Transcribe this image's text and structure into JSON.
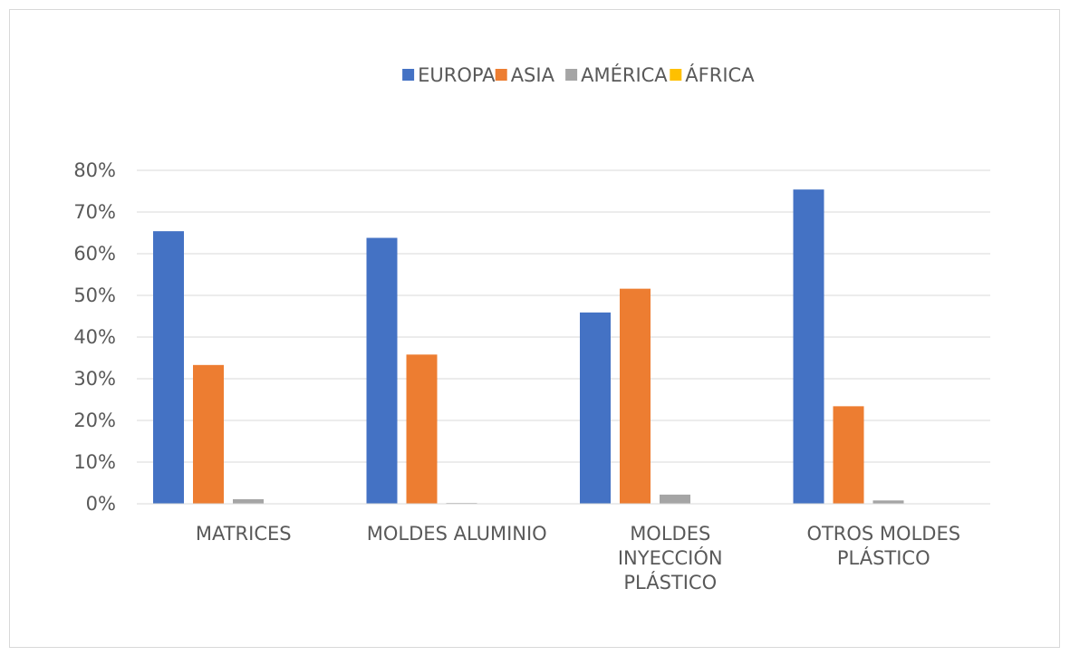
{
  "chart_data": {
    "type": "bar",
    "categories": [
      [
        "MATRICES"
      ],
      [
        "MOLDES ALUMINIO"
      ],
      [
        "MOLDES",
        "INYECCIÓN",
        "PLÁSTICO"
      ],
      [
        "OTROS MOLDES",
        "PLÁSTICO"
      ]
    ],
    "series": [
      {
        "name": "EUROPA",
        "color": "#4472c4",
        "values": [
          0.654,
          0.638,
          0.459,
          0.754
        ]
      },
      {
        "name": "ASIA",
        "color": "#ed7d31",
        "values": [
          0.333,
          0.358,
          0.516,
          0.234
        ]
      },
      {
        "name": "AMÉRICA",
        "color": "#a5a5a5",
        "values": [
          0.011,
          0.002,
          0.022,
          0.008
        ]
      },
      {
        "name": "ÁFRICA",
        "color": "#ffc000",
        "values": [
          0.0,
          0.0,
          0.0,
          0.001
        ]
      }
    ],
    "yticks": [
      "0%",
      "10%",
      "20%",
      "30%",
      "40%",
      "50%",
      "60%",
      "70%",
      "80%"
    ],
    "ylim": [
      0,
      0.8
    ],
    "grid": true,
    "legend_position": "top",
    "title": "",
    "xlabel": "",
    "ylabel": ""
  }
}
